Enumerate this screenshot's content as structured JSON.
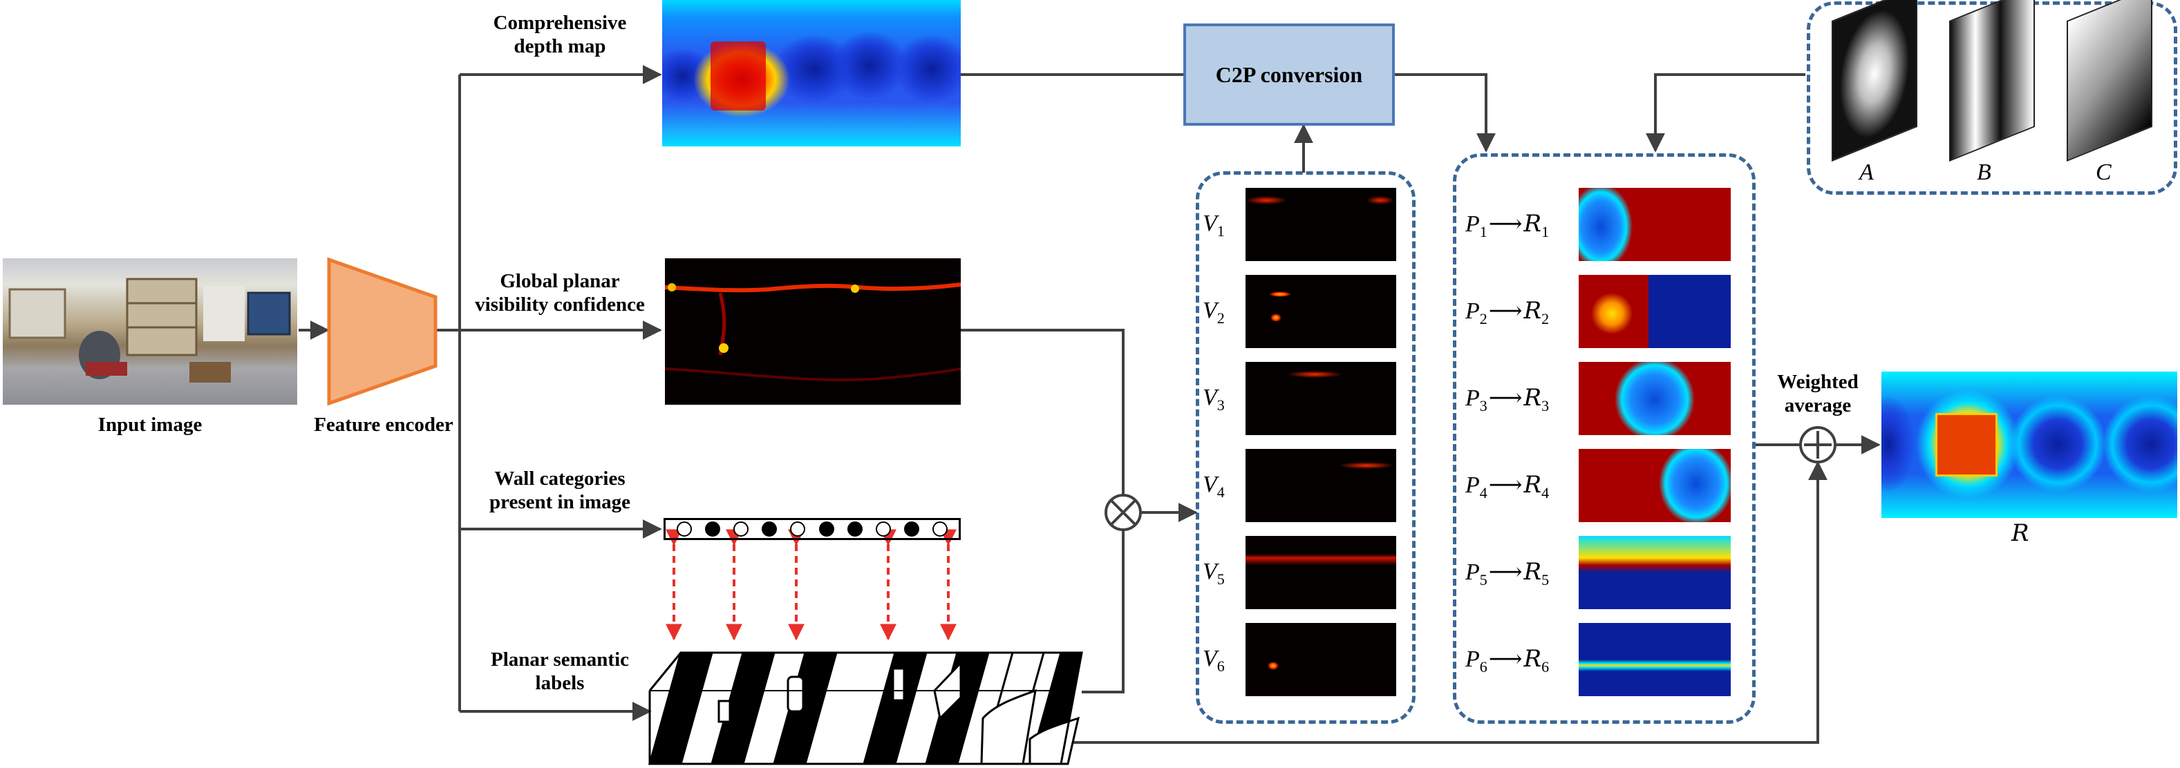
{
  "labels": {
    "input_image": "Input image",
    "feature_encoder": "Feature encoder",
    "depth_map": [
      "Comprehensive",
      "depth map"
    ],
    "visibility": [
      "Global planar",
      "visibility confidence"
    ],
    "wall_categories": [
      "Wall categories",
      "present in image"
    ],
    "semantic_labels": [
      "Planar semantic",
      "labels"
    ],
    "c2p": "C2P conversion",
    "weighted_average": [
      "Weighted",
      "average"
    ],
    "result": "R"
  },
  "visibility_items": [
    {
      "sym": "V",
      "sub": "1"
    },
    {
      "sym": "V",
      "sub": "2"
    },
    {
      "sym": "V",
      "sub": "3"
    },
    {
      "sym": "V",
      "sub": "4"
    },
    {
      "sym": "V",
      "sub": "5"
    },
    {
      "sym": "V",
      "sub": "6"
    }
  ],
  "plane_items": [
    {
      "p": "P",
      "r": "R",
      "sub": "1"
    },
    {
      "p": "P",
      "r": "R",
      "sub": "2"
    },
    {
      "p": "P",
      "r": "R",
      "sub": "3"
    },
    {
      "p": "P",
      "r": "R",
      "sub": "4"
    },
    {
      "p": "P",
      "r": "R",
      "sub": "5"
    },
    {
      "p": "P",
      "r": "R",
      "sub": "6"
    }
  ],
  "basis_maps": [
    "A",
    "B",
    "C"
  ],
  "wall_category_dots": [
    false,
    true,
    false,
    true,
    false,
    true,
    true,
    false,
    true,
    false
  ],
  "colors": {
    "arrow": "#404040",
    "dashed_border": "#3b6796",
    "c2p_fill": "#b8cde6",
    "c2p_border": "#4a78b5",
    "encoder_fill": "#f4ae7c",
    "encoder_border": "#ee7b30",
    "dependency_arrow": "#e8302a",
    "jet_blue": "#0a1f9c",
    "jet_red": "#a80000"
  }
}
